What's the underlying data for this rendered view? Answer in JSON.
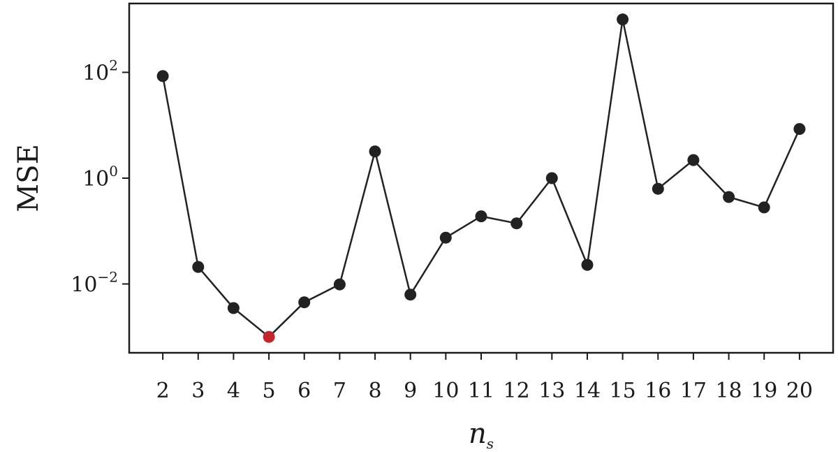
{
  "chart_data": {
    "type": "line",
    "x": [
      2,
      3,
      4,
      5,
      6,
      7,
      8,
      9,
      10,
      11,
      12,
      13,
      14,
      15,
      16,
      17,
      18,
      19,
      20
    ],
    "series": [
      {
        "values": [
          85,
          0.021,
          0.0035,
          0.001,
          0.0045,
          0.0098,
          3.2,
          0.0063,
          0.075,
          0.19,
          0.14,
          1.0,
          0.023,
          1000,
          0.63,
          2.2,
          0.44,
          0.28,
          8.5
        ],
        "color": "#222222"
      }
    ],
    "highlight": {
      "x": 5,
      "color": "#c1272d"
    },
    "xlabel_main": "n",
    "xlabel_sub": "s",
    "ylabel": "MSE",
    "yscale": "log",
    "ylim": [
      0.0005,
      2000
    ],
    "xlim": [
      1.05,
      20.95
    ],
    "yticks": [
      {
        "value": 100,
        "base": "10",
        "exp": "2"
      },
      {
        "value": 1,
        "base": "10",
        "exp": "0"
      },
      {
        "value": 0.01,
        "base": "10",
        "exp": "−2"
      }
    ],
    "grid": false,
    "legend": "none"
  }
}
